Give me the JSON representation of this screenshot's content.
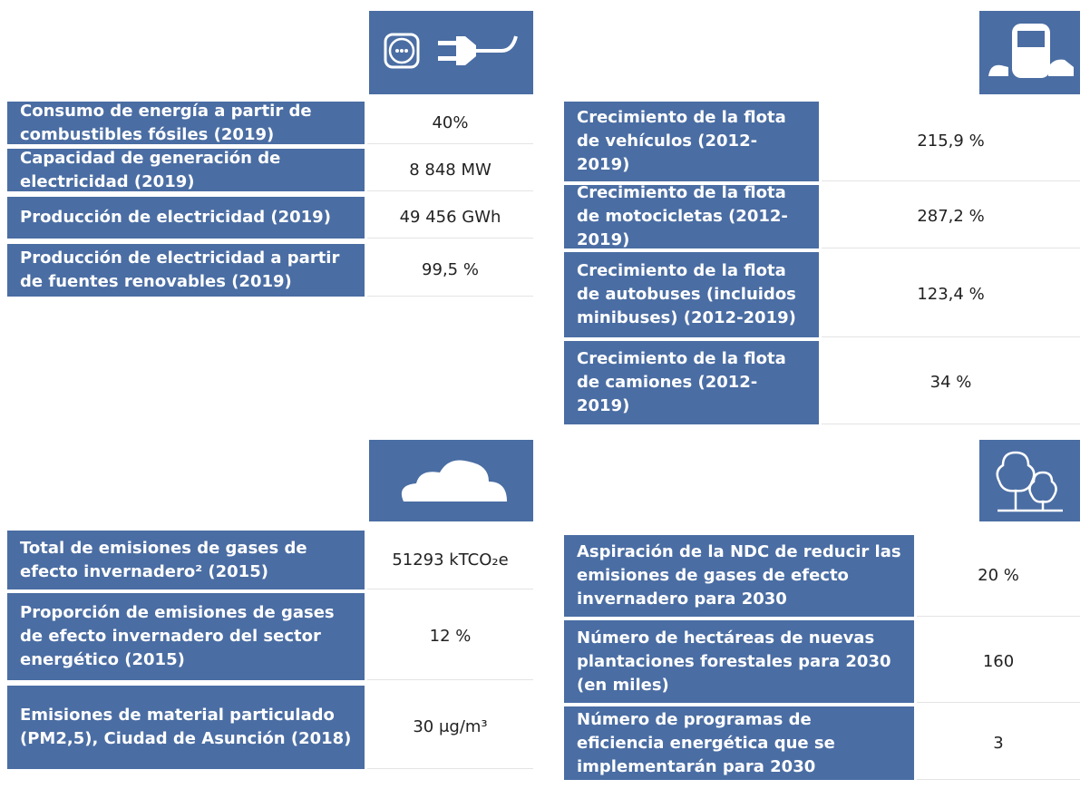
{
  "panels": [
    {
      "rows": [
        {
          "label": "Consumo de energía a partir de combustibles fósiles (2019)",
          "value": "40%"
        },
        {
          "label": "Capacidad de generación de electricidad (2019)",
          "value": "8 848 MW"
        },
        {
          "label": "Producción de electricidad (2019)",
          "value": "49 456 GWh"
        },
        {
          "label": "Producción de electricidad a partir de fuentes renovables (2019)",
          "value": "99,5 %"
        }
      ]
    },
    {
      "rows": [
        {
          "label": "Crecimiento de la flota de vehículos (2012-2019)",
          "value": "215,9 %"
        },
        {
          "label": "Crecimiento de la flota de motocicletas (2012-2019)",
          "value": "287,2 %"
        },
        {
          "label": "Crecimiento de la flota de autobuses (incluidos minibuses) (2012-2019)",
          "value": "123,4 %"
        },
        {
          "label": "Crecimiento de la flota de camiones (2012-2019)",
          "value": "34 %"
        }
      ]
    },
    {
      "rows": [
        {
          "label": "Total de emisiones de gases de efecto invernadero² (2015)",
          "value": "51293 kTCO₂e"
        },
        {
          "label": "Proporción de emisiones de gases de efecto invernadero del sector energético (2015)",
          "value": "12 %"
        },
        {
          "label": "Emisiones de material particulado (PM2,5), Ciudad de Asunción (2018)",
          "value": "30 μg/m³"
        }
      ]
    },
    {
      "rows": [
        {
          "label": "Aspiración de la NDC de reducir las emisiones de gases de efecto invernadero para 2030",
          "value": "20 %"
        },
        {
          "label": "Número de hectáreas de nuevas plantaciones forestales para 2030 (en miles)",
          "value": "160"
        },
        {
          "label": "Número de programas de eficiencia energética que se implementarán para 2030",
          "value": "3"
        }
      ]
    }
  ]
}
